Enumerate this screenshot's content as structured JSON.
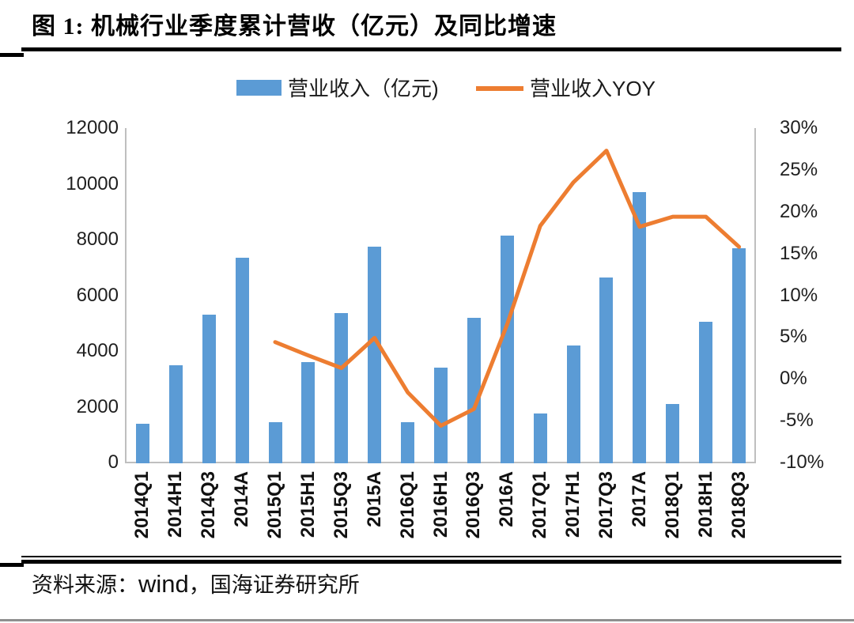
{
  "figure": {
    "title": "图 1:  机械行业季度累计营收（亿元）及同比增速",
    "source_label": "资料来源：",
    "source_wind": "wind",
    "source_rest": "，国海证券研究所"
  },
  "legend": {
    "bar": {
      "label": "营业收入（亿元)",
      "color": "#5B9BD5"
    },
    "line": {
      "label": "营业收入YOY",
      "color": "#ED7D31"
    }
  },
  "chart_data": {
    "type": "bar+line",
    "title": "机械行业季度累计营收（亿元）及同比增速",
    "categories": [
      "2014Q1",
      "2014H1",
      "2014Q3",
      "2014A",
      "2015Q1",
      "2015H1",
      "2015Q3",
      "2015A",
      "2016Q1",
      "2016H1",
      "2016Q3",
      "2016A",
      "2017Q1",
      "2017H1",
      "2017Q3",
      "2017A",
      "2018Q1",
      "2018H1",
      "2018Q3"
    ],
    "series": [
      {
        "name": "营业收入（亿元)",
        "type": "bar",
        "axis": "left",
        "color": "#5B9BD5",
        "values": [
          1400,
          3500,
          5300,
          7350,
          1450,
          3600,
          5350,
          7750,
          1450,
          3400,
          5200,
          8150,
          1750,
          4200,
          6650,
          9700,
          2100,
          5050,
          7700
        ]
      },
      {
        "name": "营业收入YOY",
        "type": "line",
        "axis": "right",
        "color": "#ED7D31",
        "values": [
          null,
          null,
          null,
          null,
          4.4,
          2.8,
          1.3,
          4.9,
          -1.6,
          -5.6,
          -3.6,
          6.5,
          18.3,
          23.5,
          27.3,
          18.2,
          19.4,
          19.4,
          15.8
        ]
      }
    ],
    "left_axis": {
      "min": 0,
      "max": 12000,
      "step": 2000,
      "ticks": [
        "0",
        "2000",
        "4000",
        "6000",
        "8000",
        "10000",
        "12000"
      ]
    },
    "right_axis": {
      "min": -10,
      "max": 30,
      "step": 5,
      "ticks": [
        "-10%",
        "-5%",
        "0%",
        "5%",
        "10%",
        "15%",
        "20%",
        "25%",
        "30%"
      ]
    },
    "grid": false,
    "legend_position": "top",
    "axis_color": "#BFBFBF"
  }
}
